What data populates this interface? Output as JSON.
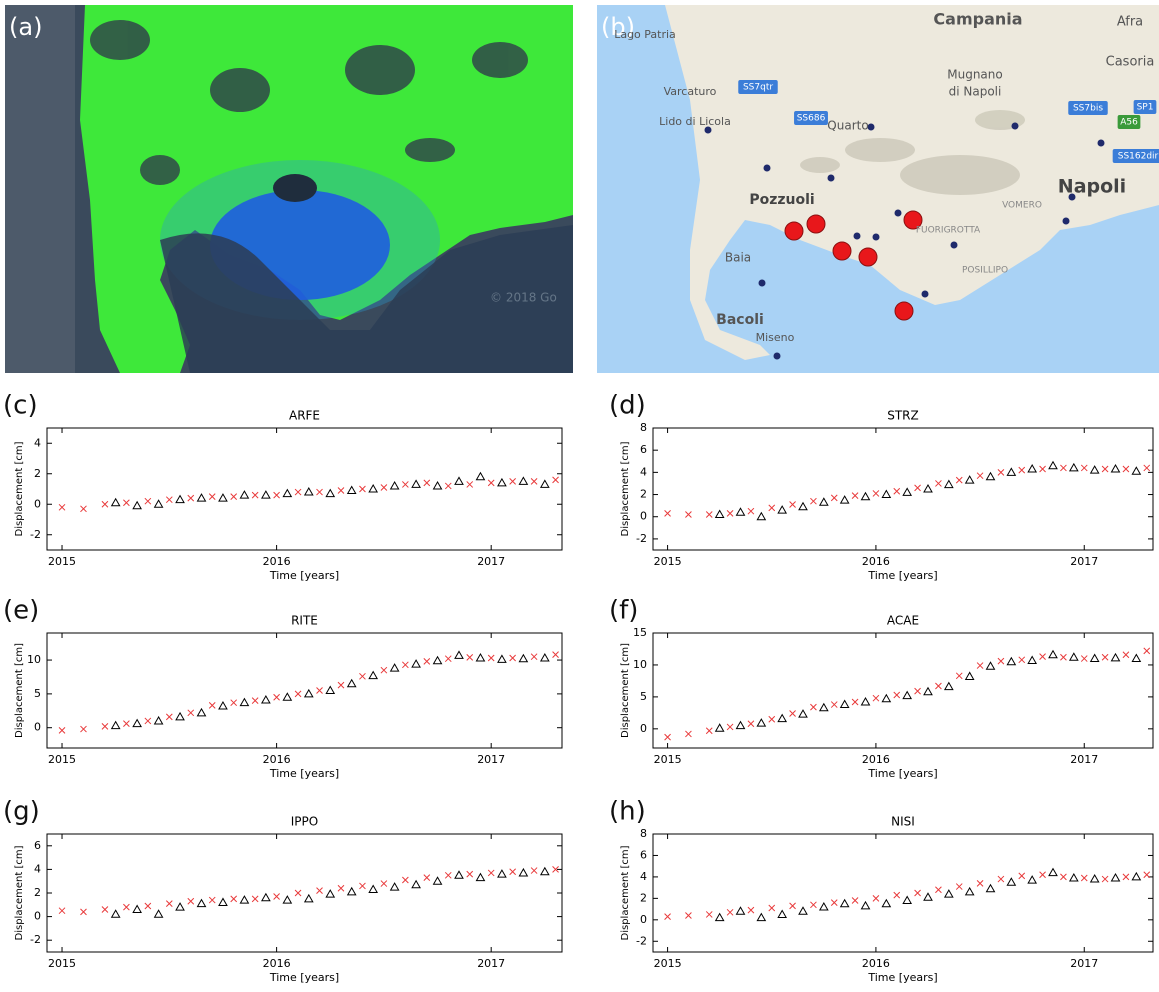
{
  "maps": {
    "a": {
      "label": "(a)",
      "watermark": "© 2018 Go"
    },
    "b": {
      "label": "(b)",
      "places": [
        "Campania",
        "Afra",
        "Lago Patria",
        "Varcaturo",
        "Mugnano",
        "di Napoli",
        "Casoria",
        "SS7qtr",
        "SP1",
        "SS686",
        "SS7bis",
        "A56",
        "SS162dir",
        "Lido di Licola",
        "Quarto",
        "Napoli",
        "Pozzuoli",
        "VOMERO",
        "FUORIGROTTA",
        "POSILLIPO",
        "Baia",
        "Bacoli",
        "Miseno"
      ]
    }
  },
  "chart_data": [
    {
      "type": "scatter",
      "panel_label": "(c)",
      "title": "ARFE",
      "xlabel": "Time [years]",
      "ylabel": "Displacement [cm]",
      "xlim": [
        2014.93,
        2017.33
      ],
      "xticks": [
        2015,
        2016,
        2017
      ],
      "ylim": [
        -3,
        5
      ],
      "yticks": [
        -2,
        0,
        2,
        4
      ],
      "series": [
        {
          "marker": "x",
          "color": "#e8393a",
          "x": [
            2015.0,
            2015.1,
            2015.2,
            2015.3,
            2015.4,
            2015.5,
            2015.6,
            2015.7,
            2015.8,
            2015.9,
            2016.0,
            2016.1,
            2016.2,
            2016.3,
            2016.4,
            2016.5,
            2016.6,
            2016.7,
            2016.8,
            2016.9,
            2017.0,
            2017.1,
            2017.2,
            2017.3
          ],
          "values": [
            -0.2,
            -0.3,
            0.0,
            0.1,
            0.2,
            0.3,
            0.4,
            0.5,
            0.5,
            0.6,
            0.6,
            0.8,
            0.8,
            0.9,
            1.0,
            1.1,
            1.3,
            1.4,
            1.2,
            1.3,
            1.4,
            1.5,
            1.5,
            1.6
          ]
        },
        {
          "marker": "triangle",
          "color": "#000000",
          "x": [
            2015.25,
            2015.35,
            2015.45,
            2015.55,
            2015.65,
            2015.75,
            2015.85,
            2015.95,
            2016.05,
            2016.15,
            2016.25,
            2016.35,
            2016.45,
            2016.55,
            2016.65,
            2016.75,
            2016.85,
            2016.95,
            2017.05,
            2017.15,
            2017.25
          ],
          "values": [
            0.1,
            -0.1,
            0.0,
            0.3,
            0.4,
            0.4,
            0.6,
            0.6,
            0.7,
            0.8,
            0.7,
            0.9,
            1.0,
            1.2,
            1.3,
            1.2,
            1.5,
            1.8,
            1.4,
            1.5,
            1.3
          ]
        }
      ]
    },
    {
      "type": "scatter",
      "panel_label": "(d)",
      "title": "STRZ",
      "xlabel": "Time [years]",
      "ylabel": "Displacement [cm]",
      "xlim": [
        2014.93,
        2017.33
      ],
      "xticks": [
        2015,
        2016,
        2017
      ],
      "ylim": [
        -3,
        8
      ],
      "yticks": [
        -2,
        0,
        2,
        4,
        6,
        8
      ],
      "series": [
        {
          "marker": "x",
          "color": "#e8393a",
          "x": [
            2015.0,
            2015.1,
            2015.2,
            2015.3,
            2015.4,
            2015.5,
            2015.6,
            2015.7,
            2015.8,
            2015.9,
            2016.0,
            2016.1,
            2016.2,
            2016.3,
            2016.4,
            2016.5,
            2016.6,
            2016.7,
            2016.8,
            2016.9,
            2017.0,
            2017.1,
            2017.2,
            2017.3
          ],
          "values": [
            0.3,
            0.2,
            0.2,
            0.3,
            0.5,
            0.8,
            1.1,
            1.4,
            1.7,
            1.9,
            2.1,
            2.3,
            2.6,
            3.0,
            3.3,
            3.7,
            4.0,
            4.2,
            4.3,
            4.4,
            4.4,
            4.3,
            4.3,
            4.4
          ]
        },
        {
          "marker": "triangle",
          "color": "#000000",
          "x": [
            2015.25,
            2015.35,
            2015.45,
            2015.55,
            2015.65,
            2015.75,
            2015.85,
            2015.95,
            2016.05,
            2016.15,
            2016.25,
            2016.35,
            2016.45,
            2016.55,
            2016.65,
            2016.75,
            2016.85,
            2016.95,
            2017.05,
            2017.15,
            2017.25
          ],
          "values": [
            0.2,
            0.4,
            0.0,
            0.6,
            0.9,
            1.3,
            1.5,
            1.8,
            2.0,
            2.2,
            2.5,
            2.9,
            3.3,
            3.6,
            4.0,
            4.3,
            4.6,
            4.4,
            4.2,
            4.3,
            4.1
          ]
        }
      ]
    },
    {
      "type": "scatter",
      "panel_label": "(e)",
      "title": "RITE",
      "xlabel": "Time [years]",
      "ylabel": "Displacement [cm]",
      "xlim": [
        2014.93,
        2017.33
      ],
      "xticks": [
        2015,
        2016,
        2017
      ],
      "ylim": [
        -3,
        14
      ],
      "yticks": [
        0,
        5,
        10
      ],
      "series": [
        {
          "marker": "x",
          "color": "#e8393a",
          "x": [
            2015.0,
            2015.1,
            2015.2,
            2015.3,
            2015.4,
            2015.5,
            2015.6,
            2015.7,
            2015.8,
            2015.9,
            2016.0,
            2016.1,
            2016.2,
            2016.3,
            2016.4,
            2016.5,
            2016.6,
            2016.7,
            2016.8,
            2016.9,
            2017.0,
            2017.1,
            2017.2,
            2017.3
          ],
          "values": [
            -0.4,
            -0.2,
            0.2,
            0.6,
            1.0,
            1.6,
            2.2,
            3.3,
            3.7,
            4.0,
            4.5,
            5.0,
            5.5,
            6.3,
            7.6,
            8.5,
            9.3,
            9.8,
            10.2,
            10.4,
            10.3,
            10.3,
            10.5,
            10.8
          ]
        },
        {
          "marker": "triangle",
          "color": "#000000",
          "x": [
            2015.25,
            2015.35,
            2015.45,
            2015.55,
            2015.65,
            2015.75,
            2015.85,
            2015.95,
            2016.05,
            2016.15,
            2016.25,
            2016.35,
            2016.45,
            2016.55,
            2016.65,
            2016.75,
            2016.85,
            2016.95,
            2017.05,
            2017.15,
            2017.25
          ],
          "values": [
            0.3,
            0.6,
            1.0,
            1.6,
            2.2,
            3.2,
            3.7,
            4.1,
            4.5,
            5.0,
            5.5,
            6.5,
            7.7,
            8.8,
            9.4,
            9.9,
            10.7,
            10.3,
            10.1,
            10.2,
            10.3
          ]
        }
      ]
    },
    {
      "type": "scatter",
      "panel_label": "(f)",
      "title": "ACAE",
      "xlabel": "Time [years]",
      "ylabel": "Displacement [cm]",
      "xlim": [
        2014.93,
        2017.33
      ],
      "xticks": [
        2015,
        2016,
        2017
      ],
      "ylim": [
        -3,
        15
      ],
      "yticks": [
        0,
        5,
        10,
        15
      ],
      "series": [
        {
          "marker": "x",
          "color": "#e8393a",
          "x": [
            2015.0,
            2015.1,
            2015.2,
            2015.3,
            2015.4,
            2015.5,
            2015.6,
            2015.7,
            2015.8,
            2015.9,
            2016.0,
            2016.1,
            2016.2,
            2016.3,
            2016.4,
            2016.5,
            2016.6,
            2016.7,
            2016.8,
            2016.9,
            2017.0,
            2017.1,
            2017.2,
            2017.3
          ],
          "values": [
            -1.3,
            -0.8,
            -0.3,
            0.3,
            0.8,
            1.5,
            2.4,
            3.4,
            3.8,
            4.2,
            4.8,
            5.3,
            5.9,
            6.7,
            8.3,
            9.9,
            10.6,
            10.8,
            11.3,
            11.2,
            11.0,
            11.2,
            11.6,
            12.2
          ]
        },
        {
          "marker": "triangle",
          "color": "#000000",
          "x": [
            2015.25,
            2015.35,
            2015.45,
            2015.55,
            2015.65,
            2015.75,
            2015.85,
            2015.95,
            2016.05,
            2016.15,
            2016.25,
            2016.35,
            2016.45,
            2016.55,
            2016.65,
            2016.75,
            2016.85,
            2016.95,
            2017.05,
            2017.15,
            2017.25
          ],
          "values": [
            0.1,
            0.5,
            0.9,
            1.6,
            2.3,
            3.3,
            3.8,
            4.2,
            4.7,
            5.2,
            5.8,
            6.6,
            8.2,
            9.8,
            10.5,
            10.7,
            11.6,
            11.2,
            11.0,
            11.1,
            11.0
          ]
        }
      ]
    },
    {
      "type": "scatter",
      "panel_label": "(g)",
      "title": "IPPO",
      "xlabel": "Time [years]",
      "ylabel": "Displacement [cm]",
      "xlim": [
        2014.93,
        2017.33
      ],
      "xticks": [
        2015,
        2016,
        2017
      ],
      "ylim": [
        -3,
        7
      ],
      "yticks": [
        -2,
        0,
        2,
        4,
        6
      ],
      "series": [
        {
          "marker": "x",
          "color": "#e8393a",
          "x": [
            2015.0,
            2015.1,
            2015.2,
            2015.3,
            2015.4,
            2015.5,
            2015.6,
            2015.7,
            2015.8,
            2015.9,
            2016.0,
            2016.1,
            2016.2,
            2016.3,
            2016.4,
            2016.5,
            2016.6,
            2016.7,
            2016.8,
            2016.9,
            2017.0,
            2017.1,
            2017.2,
            2017.3
          ],
          "values": [
            0.5,
            0.4,
            0.6,
            0.8,
            0.9,
            1.1,
            1.3,
            1.4,
            1.5,
            1.5,
            1.7,
            2.0,
            2.2,
            2.4,
            2.6,
            2.8,
            3.1,
            3.3,
            3.5,
            3.6,
            3.7,
            3.8,
            3.9,
            4.0
          ]
        },
        {
          "marker": "triangle",
          "color": "#000000",
          "x": [
            2015.25,
            2015.35,
            2015.45,
            2015.55,
            2015.65,
            2015.75,
            2015.85,
            2015.95,
            2016.05,
            2016.15,
            2016.25,
            2016.35,
            2016.45,
            2016.55,
            2016.65,
            2016.75,
            2016.85,
            2016.95,
            2017.05,
            2017.15,
            2017.25
          ],
          "values": [
            0.2,
            0.6,
            0.2,
            0.8,
            1.1,
            1.2,
            1.4,
            1.6,
            1.4,
            1.5,
            1.9,
            2.1,
            2.3,
            2.5,
            2.7,
            3.0,
            3.5,
            3.3,
            3.6,
            3.7,
            3.8
          ]
        }
      ]
    },
    {
      "type": "scatter",
      "panel_label": "(h)",
      "title": "NISI",
      "xlabel": "Time [years]",
      "ylabel": "Displacement [cm]",
      "xlim": [
        2014.93,
        2017.33
      ],
      "xticks": [
        2015,
        2016,
        2017
      ],
      "ylim": [
        -3,
        8
      ],
      "yticks": [
        -2,
        0,
        2,
        4,
        6,
        8
      ],
      "series": [
        {
          "marker": "x",
          "color": "#e8393a",
          "x": [
            2015.0,
            2015.1,
            2015.2,
            2015.3,
            2015.4,
            2015.5,
            2015.6,
            2015.7,
            2015.8,
            2015.9,
            2016.0,
            2016.1,
            2016.2,
            2016.3,
            2016.4,
            2016.5,
            2016.6,
            2016.7,
            2016.8,
            2016.9,
            2017.0,
            2017.1,
            2017.2,
            2017.3
          ],
          "values": [
            0.3,
            0.4,
            0.5,
            0.7,
            0.9,
            1.1,
            1.3,
            1.4,
            1.6,
            1.8,
            2.0,
            2.3,
            2.5,
            2.8,
            3.1,
            3.4,
            3.8,
            4.1,
            4.2,
            4.0,
            3.9,
            3.8,
            4.0,
            4.2
          ]
        },
        {
          "marker": "triangle",
          "color": "#000000",
          "x": [
            2015.25,
            2015.35,
            2015.45,
            2015.55,
            2015.65,
            2015.75,
            2015.85,
            2015.95,
            2016.05,
            2016.15,
            2016.25,
            2016.35,
            2016.45,
            2016.55,
            2016.65,
            2016.75,
            2016.85,
            2016.95,
            2017.05,
            2017.15,
            2017.25
          ],
          "values": [
            0.2,
            0.8,
            0.2,
            0.5,
            0.8,
            1.2,
            1.5,
            1.3,
            1.5,
            1.8,
            2.1,
            2.4,
            2.6,
            2.9,
            3.5,
            3.7,
            4.4,
            3.9,
            3.8,
            3.9,
            4.0
          ]
        }
      ]
    }
  ]
}
